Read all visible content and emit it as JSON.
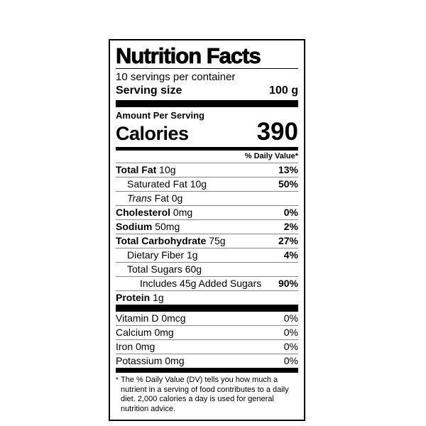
{
  "colors": {
    "text": "#000000",
    "background": "#ffffff",
    "hairline": "#878787"
  },
  "label": {
    "title": "Nutrition Facts",
    "serving_info": {
      "servings_per_container": "10 servings per container",
      "serving_size_label": "Serving size",
      "serving_size_value": "100 g"
    },
    "calories": {
      "amount_per_serving": "Amount Per Serving",
      "label": "Calories",
      "value": "390"
    },
    "daily_value_header": "% Daily Value*",
    "nutrients": [
      {
        "bold": "Total Fat",
        "italic": "",
        "rest": " 10g",
        "dv": "13%"
      },
      {
        "bold": "",
        "italic": "",
        "rest": "Saturated Fat 10g",
        "dv": "50%"
      },
      {
        "bold": "",
        "italic": "Trans",
        "rest": " Fat 0g",
        "dv": ""
      },
      {
        "bold": "Cholesterol",
        "italic": "",
        "rest": " 0mg",
        "dv": "0%"
      },
      {
        "bold": "Sodium",
        "italic": "",
        "rest": " 50mg",
        "dv": "2%"
      },
      {
        "bold": "Total Carbohydrate",
        "italic": "",
        "rest": " 75g",
        "dv": "27%"
      },
      {
        "bold": "",
        "italic": "",
        "rest": "Dietary Fiber 1g",
        "dv": "4%"
      },
      {
        "bold": "",
        "italic": "",
        "rest": "Total Sugars 60g",
        "dv": ""
      },
      {
        "bold": "",
        "italic": "",
        "rest": "Includes 45g Added Sugars",
        "dv": "90%"
      },
      {
        "bold": "Protein",
        "italic": "",
        "rest": " 1g",
        "dv": ""
      }
    ],
    "vitamins": [
      {
        "name": "Vitamin D 0mcg",
        "dv": "0%"
      },
      {
        "name": "Calcium 0mg",
        "dv": "0%"
      },
      {
        "name": "Iron 0mg",
        "dv": "0%"
      },
      {
        "name": "Potassium 0mg",
        "dv": "0%"
      }
    ],
    "footnote_marker": "*",
    "footnote": "The % Daily Value (DV) tells you how much a nutrient in a serving of food contributes to a daily diet. 2,000 calories a day is used for general nutrition advice."
  }
}
